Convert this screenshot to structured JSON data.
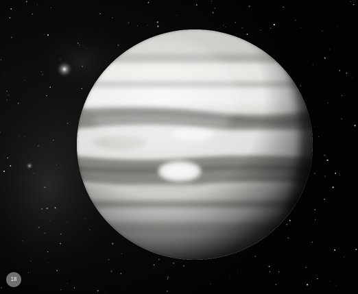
{
  "image": {
    "subject": "banded-gas-giant-planet",
    "palette": {
      "space": "#020202",
      "planet_light": "#f4f4f2",
      "planet_band": "#8a8a88",
      "planet_shadow": "#202020",
      "badge_fill": "#6f6f6f",
      "badge_text": "#f2f2f2"
    }
  },
  "badge": {
    "label": "18"
  }
}
